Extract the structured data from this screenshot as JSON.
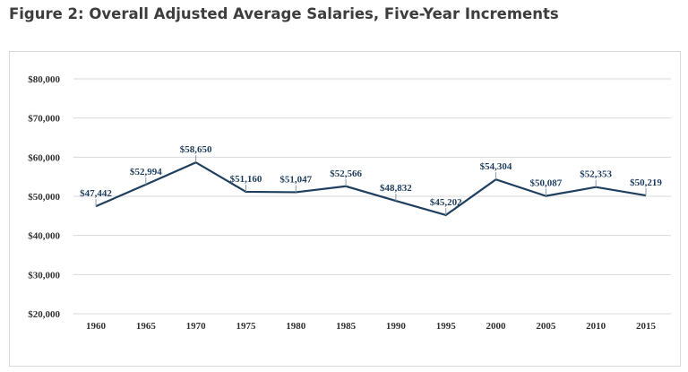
{
  "figure_title": "Figure 2: Overall Adjusted Average Salaries, Five-Year Increments",
  "chart_data": {
    "type": "line",
    "title": "",
    "xlabel": "",
    "ylabel": "",
    "categories": [
      "1960",
      "1965",
      "1970",
      "1975",
      "1980",
      "1985",
      "1990",
      "1995",
      "2000",
      "2005",
      "2010",
      "2015"
    ],
    "series": [
      {
        "values": [
          47442,
          52994,
          58650,
          51160,
          51047,
          52566,
          48832,
          45202,
          54304,
          50087,
          52353,
          50219
        ],
        "labels": [
          "$47,442",
          "$52,994",
          "$58,650",
          "$51,160",
          "$51,047",
          "$52,566",
          "$48,832",
          "$45,202",
          "$54,304",
          "$50,087",
          "$52,353",
          "$50,219"
        ],
        "color": "#1f3f5f"
      }
    ],
    "ylim": [
      20000,
      80000
    ],
    "yticks": [
      80000,
      70000,
      60000,
      50000,
      40000,
      30000,
      20000
    ],
    "ytick_labels": [
      "$80,000",
      "$70,000",
      "$60,000",
      "$50,000",
      "$40,000",
      "$30,000",
      "$20,000"
    ],
    "grid": true,
    "legend": "none"
  },
  "colors": {
    "line": "#1f3f5f",
    "label": "#1f3f5f",
    "tick": "#333333",
    "grid": "#d9d9d9",
    "title": "#3d3d3d"
  }
}
